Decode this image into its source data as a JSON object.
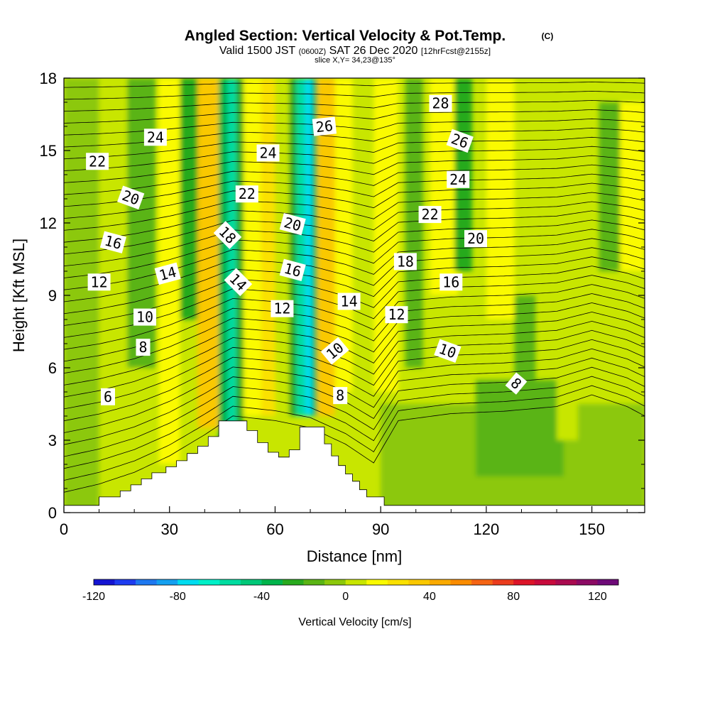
{
  "chart_data": {
    "type": "heatmap",
    "title": "Angled Section: Vertical Velocity & Pot.Temp.",
    "title_unit": "(C)",
    "subtitle_parts": [
      "Valid 1500 JST",
      "(0600Z)",
      "SAT 26 Dec 2020",
      "[12hrFcst@2155z]"
    ],
    "slice_label": "slice X,Y= 34,23@135°",
    "xlabel": "Distance [nm]",
    "ylabel": "Height [Kft MSL]",
    "xlim": [
      0,
      165
    ],
    "ylim": [
      0,
      18
    ],
    "xticks": [
      0,
      30,
      60,
      90,
      120,
      150
    ],
    "yticks": [
      0,
      3,
      6,
      9,
      12,
      15,
      18
    ],
    "colorbar": {
      "label": "Vertical Velocity [cm/s]",
      "range": [
        -120,
        130
      ],
      "ticks": [
        -120,
        -80,
        -40,
        0,
        40,
        80,
        120
      ],
      "colors": [
        "#1414d2",
        "#1e3cf0",
        "#1e78f0",
        "#14a0f0",
        "#00dcf0",
        "#00f0c8",
        "#00dca0",
        "#00c878",
        "#00b44b",
        "#28aa1e",
        "#5ab414",
        "#8cc80a",
        "#c8e600",
        "#fafa00",
        "#fae100",
        "#fac800",
        "#faaa00",
        "#fa8c00",
        "#f56414",
        "#eb3c1e",
        "#dc1428",
        "#c80a3c",
        "#aa0a50",
        "#8c0a64",
        "#6e0a78"
      ]
    },
    "velocity_field": {
      "background": 5,
      "cells": [
        {
          "x": [
            0,
            10
          ],
          "y": [
            0,
            18
          ],
          "v": -5
        },
        {
          "x": [
            10,
            22
          ],
          "y": [
            4,
            18
          ],
          "v": 3
        },
        {
          "x": [
            18,
            26
          ],
          "y": [
            6,
            18
          ],
          "v": -20
        },
        {
          "x": [
            27,
            33
          ],
          "y": [
            2,
            18
          ],
          "v": 12
        },
        {
          "x": [
            33,
            38
          ],
          "y": [
            8,
            18
          ],
          "v": -25
        },
        {
          "x": [
            38,
            44
          ],
          "y": [
            3.5,
            18
          ],
          "v": 30
        },
        {
          "x": [
            44,
            46.5
          ],
          "y": [
            3,
            18
          ],
          "v": -35
        },
        {
          "x": [
            46.5,
            49
          ],
          "y": [
            3,
            18
          ],
          "v": -60
        },
        {
          "x": [
            49,
            51
          ],
          "y": [
            3,
            18
          ],
          "v": -30
        },
        {
          "x": [
            51,
            56
          ],
          "y": [
            4,
            18
          ],
          "v": 12
        },
        {
          "x": [
            56,
            60
          ],
          "y": [
            4,
            18
          ],
          "v": 28
        },
        {
          "x": [
            60,
            64
          ],
          "y": [
            4,
            18
          ],
          "v": 8
        },
        {
          "x": [
            64,
            66
          ],
          "y": [
            4,
            18
          ],
          "v": -30
        },
        {
          "x": [
            66,
            68.5
          ],
          "y": [
            4,
            18
          ],
          "v": -55
        },
        {
          "x": [
            68.5,
            70.5
          ],
          "y": [
            4,
            18
          ],
          "v": -80
        },
        {
          "x": [
            70.5,
            72
          ],
          "y": [
            4,
            18
          ],
          "v": -40
        },
        {
          "x": [
            72,
            77
          ],
          "y": [
            4,
            18
          ],
          "v": 30
        },
        {
          "x": [
            77,
            82
          ],
          "y": [
            5,
            18
          ],
          "v": 10
        },
        {
          "x": [
            88,
            95
          ],
          "y": [
            5,
            18
          ],
          "v": 15
        },
        {
          "x": [
            97,
            102
          ],
          "y": [
            6,
            18
          ],
          "v": -15
        },
        {
          "x": [
            104,
            112
          ],
          "y": [
            9,
            18
          ],
          "v": 12
        },
        {
          "x": [
            111,
            116
          ],
          "y": [
            10,
            18
          ],
          "v": -25
        },
        {
          "x": [
            120,
            128
          ],
          "y": [
            8,
            18
          ],
          "v": 14
        },
        {
          "x": [
            90,
            165
          ],
          "y": [
            0,
            4.5
          ],
          "v": -5
        },
        {
          "x": [
            117,
            142
          ],
          "y": [
            1.5,
            5.5
          ],
          "v": -15
        },
        {
          "x": [
            128,
            134
          ],
          "y": [
            5,
            9
          ],
          "v": -15
        },
        {
          "x": [
            140,
            146
          ],
          "y": [
            3,
            8
          ],
          "v": 8
        },
        {
          "x": [
            152,
            158
          ],
          "y": [
            10,
            17
          ],
          "v": -15
        },
        {
          "x": [
            158,
            165
          ],
          "y": [
            10,
            17
          ],
          "v": 14
        }
      ]
    },
    "terrain_kft": [
      [
        0,
        0.3
      ],
      [
        10,
        0.3
      ],
      [
        10,
        0.65
      ],
      [
        16,
        0.65
      ],
      [
        16,
        0.9
      ],
      [
        19,
        0.9
      ],
      [
        19,
        1.15
      ],
      [
        22,
        1.15
      ],
      [
        22,
        1.4
      ],
      [
        25,
        1.4
      ],
      [
        25,
        1.65
      ],
      [
        29,
        1.65
      ],
      [
        29,
        1.9
      ],
      [
        32,
        1.9
      ],
      [
        32,
        2.15
      ],
      [
        35,
        2.15
      ],
      [
        35,
        2.45
      ],
      [
        38,
        2.45
      ],
      [
        38,
        2.75
      ],
      [
        41,
        2.75
      ],
      [
        41,
        3.15
      ],
      [
        44,
        3.15
      ],
      [
        44,
        3.8
      ],
      [
        52,
        3.8
      ],
      [
        52,
        3.4
      ],
      [
        55,
        3.4
      ],
      [
        55,
        2.9
      ],
      [
        58,
        2.9
      ],
      [
        58,
        2.5
      ],
      [
        61,
        2.5
      ],
      [
        61,
        2.3
      ],
      [
        64,
        2.3
      ],
      [
        64,
        2.6
      ],
      [
        67,
        2.6
      ],
      [
        67,
        3.55
      ],
      [
        74,
        3.55
      ],
      [
        74,
        2.85
      ],
      [
        76,
        2.85
      ],
      [
        76,
        2.35
      ],
      [
        78,
        2.35
      ],
      [
        78,
        1.95
      ],
      [
        80,
        1.95
      ],
      [
        80,
        1.6
      ],
      [
        82,
        1.6
      ],
      [
        82,
        1.3
      ],
      [
        84,
        1.3
      ],
      [
        84,
        0.95
      ],
      [
        86,
        0.95
      ],
      [
        86,
        0.65
      ],
      [
        91,
        0.65
      ],
      [
        91,
        0.3
      ],
      [
        165,
        0.3
      ]
    ],
    "theta_base": [
      [
        0,
        0.35
      ],
      [
        10,
        0.7
      ],
      [
        20,
        1.2
      ],
      [
        30,
        1.9
      ],
      [
        40,
        2.8
      ],
      [
        48,
        3.6
      ],
      [
        60,
        3.4
      ],
      [
        70,
        3.1
      ],
      [
        80,
        2.4
      ],
      [
        88,
        1.6
      ],
      [
        95,
        3.4
      ],
      [
        110,
        3.7
      ],
      [
        125,
        3.8
      ],
      [
        140,
        4.0
      ],
      [
        150,
        4.5
      ],
      [
        160,
        4.0
      ],
      [
        165,
        3.6
      ]
    ],
    "theta_top": 18.6,
    "theta_levels": 36,
    "contour_labels": [
      {
        "text": "28",
        "x": 107,
        "y": 16.95,
        "angle": 0
      },
      {
        "text": "26",
        "x": 74,
        "y": 16.0,
        "angle": -6
      },
      {
        "text": "26",
        "x": 112.5,
        "y": 15.4,
        "angle": 20
      },
      {
        "text": "24",
        "x": 26,
        "y": 15.55,
        "angle": 0
      },
      {
        "text": "24",
        "x": 58,
        "y": 14.9,
        "angle": 0
      },
      {
        "text": "22",
        "x": 9.5,
        "y": 14.55,
        "angle": 0
      },
      {
        "text": "24",
        "x": 112,
        "y": 13.8,
        "angle": 0
      },
      {
        "text": "22",
        "x": 52,
        "y": 13.2,
        "angle": 0
      },
      {
        "text": "20",
        "x": 19,
        "y": 13.05,
        "angle": 20
      },
      {
        "text": "22",
        "x": 104,
        "y": 12.35,
        "angle": 0
      },
      {
        "text": "20",
        "x": 65,
        "y": 11.95,
        "angle": 15
      },
      {
        "text": "18",
        "x": 46.5,
        "y": 11.5,
        "angle": 45
      },
      {
        "text": "20",
        "x": 117,
        "y": 11.35,
        "angle": 0
      },
      {
        "text": "16",
        "x": 14,
        "y": 11.2,
        "angle": 15
      },
      {
        "text": "18",
        "x": 97,
        "y": 10.4,
        "angle": 0
      },
      {
        "text": "16",
        "x": 65,
        "y": 10.05,
        "angle": 15
      },
      {
        "text": "14",
        "x": 29.5,
        "y": 9.9,
        "angle": -15
      },
      {
        "text": "12",
        "x": 10,
        "y": 9.55,
        "angle": 0
      },
      {
        "text": "14",
        "x": 49.5,
        "y": 9.55,
        "angle": 45
      },
      {
        "text": "16",
        "x": 110,
        "y": 9.55,
        "angle": 0
      },
      {
        "text": "14",
        "x": 81,
        "y": 8.75,
        "angle": 0
      },
      {
        "text": "12",
        "x": 62,
        "y": 8.45,
        "angle": 0
      },
      {
        "text": "12",
        "x": 94.5,
        "y": 8.2,
        "angle": 0
      },
      {
        "text": "10",
        "x": 23,
        "y": 8.1,
        "angle": 0
      },
      {
        "text": "8",
        "x": 22.5,
        "y": 6.85,
        "angle": 0
      },
      {
        "text": "10",
        "x": 77,
        "y": 6.7,
        "angle": -40
      },
      {
        "text": "10",
        "x": 109,
        "y": 6.7,
        "angle": 20
      },
      {
        "text": "8",
        "x": 128.5,
        "y": 5.35,
        "angle": 40
      },
      {
        "text": "6",
        "x": 12.5,
        "y": 4.8,
        "angle": 0
      },
      {
        "text": "8",
        "x": 78.5,
        "y": 4.85,
        "angle": 0
      }
    ]
  }
}
